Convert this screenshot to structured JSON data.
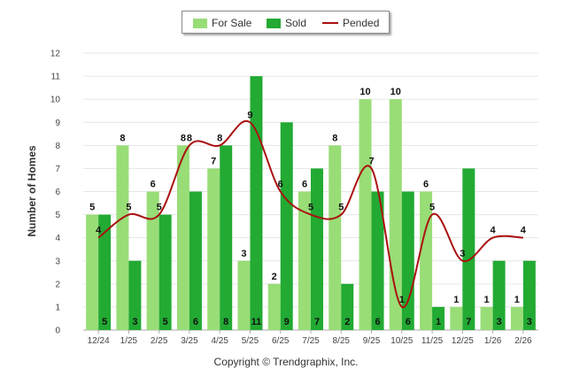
{
  "chart_data": {
    "type": "bar",
    "title": "",
    "ylabel": "Number of Homes",
    "xlabel": "",
    "ylim": [
      0,
      12
    ],
    "categories": [
      "12/24",
      "1/25",
      "2/25",
      "3/25",
      "4/25",
      "5/25",
      "6/25",
      "7/25",
      "8/25",
      "9/25",
      "10/25",
      "11/25",
      "12/25",
      "1/26",
      "2/26"
    ],
    "series": [
      {
        "name": "For Sale",
        "kind": "bar",
        "color": "#99dd77",
        "values": [
          5,
          8,
          6,
          8,
          7,
          3,
          2,
          6,
          8,
          10,
          10,
          6,
          1,
          1,
          1
        ]
      },
      {
        "name": "Sold",
        "kind": "bar",
        "color": "#22aa33",
        "values": [
          5,
          3,
          5,
          6,
          8,
          11,
          9,
          7,
          2,
          6,
          6,
          1,
          7,
          3,
          3
        ]
      },
      {
        "name": "Pended",
        "kind": "line",
        "color": "#aa1111",
        "values": [
          4,
          5,
          5,
          8,
          8,
          9,
          6,
          5,
          5,
          7,
          1,
          5,
          3,
          4,
          4
        ]
      }
    ],
    "legend": "top-center",
    "grid": true
  },
  "copyright": "Copyright © Trendgraphix, Inc."
}
